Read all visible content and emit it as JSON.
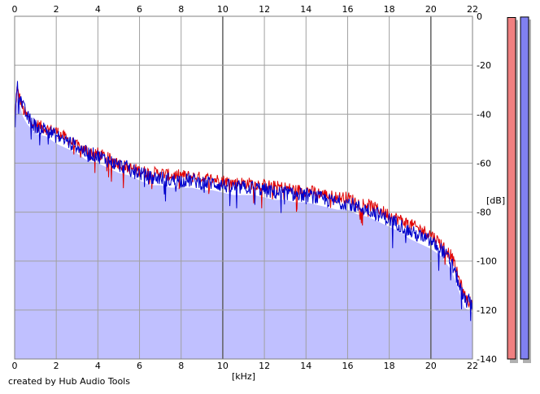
{
  "chart_data": {
    "type": "area",
    "title": "",
    "xlabel": "[kHz]",
    "ylabel": "[dB]",
    "xlim": [
      0,
      22
    ],
    "ylim": [
      -140,
      0
    ],
    "x_ticks": [
      0,
      2,
      4,
      6,
      8,
      10,
      12,
      14,
      16,
      18,
      20,
      22
    ],
    "y_ticks": [
      0,
      -20,
      -40,
      -60,
      -80,
      -100,
      -120,
      -140
    ],
    "grid": true,
    "colors": {
      "red": "#e00000",
      "blue": "#0000cc",
      "fill": "#c0c0ff"
    },
    "series": [
      {
        "color": "#e00000",
        "x": [
          0,
          0.1,
          0.2,
          0.4,
          0.6,
          0.8,
          1,
          1.5,
          2,
          2.5,
          3,
          3.5,
          4,
          4.5,
          5,
          5.5,
          6,
          6.5,
          7,
          7.5,
          8,
          8.5,
          9,
          9.5,
          10,
          10.5,
          11,
          11.5,
          12,
          12.5,
          13,
          13.5,
          14,
          14.5,
          15,
          15.5,
          16,
          16.5,
          17,
          17.5,
          18,
          18.5,
          19,
          19.5,
          20,
          20.5,
          21,
          21.3,
          21.6,
          22
        ],
        "values": [
          -45,
          -30,
          -32,
          -38,
          -41,
          -43,
          -44,
          -46,
          -47,
          -50,
          -53,
          -55,
          -56,
          -58,
          -60,
          -62,
          -63,
          -64,
          -64,
          -65,
          -65,
          -65.5,
          -66,
          -66.5,
          -67,
          -68,
          -68,
          -68.5,
          -69,
          -69.5,
          -70,
          -71,
          -71,
          -72,
          -73,
          -74,
          -74,
          -76,
          -77,
          -79,
          -81,
          -83,
          -85,
          -87,
          -89,
          -93,
          -98,
          -106,
          -114,
          -118
        ]
      },
      {
        "color": "#0000cc",
        "x": [
          0,
          0.1,
          0.2,
          0.4,
          0.6,
          0.8,
          1,
          1.5,
          2,
          2.5,
          3,
          3.5,
          4,
          4.5,
          5,
          5.5,
          6,
          6.5,
          7,
          7.5,
          8,
          8.5,
          9,
          9.5,
          10,
          10.5,
          11,
          11.5,
          12,
          12.5,
          13,
          13.5,
          14,
          14.5,
          15,
          15.5,
          16,
          16.5,
          17,
          17.5,
          18,
          18.5,
          19,
          19.5,
          20,
          20.5,
          21,
          21.3,
          21.6,
          22
        ],
        "values": [
          -48,
          -27,
          -31,
          -37,
          -41,
          -43,
          -45,
          -46,
          -49,
          -51,
          -53,
          -56,
          -57,
          -59,
          -61,
          -62,
          -64,
          -66,
          -66,
          -67,
          -67,
          -67,
          -68,
          -68,
          -69,
          -70,
          -70,
          -70,
          -71,
          -72,
          -72,
          -73,
          -73,
          -74,
          -75,
          -76,
          -76,
          -78,
          -79,
          -81,
          -83,
          -85,
          -88,
          -90,
          -92,
          -95,
          -101,
          -108,
          -116,
          -117
        ]
      }
    ],
    "level_meters": [
      {
        "color": "#f08080",
        "level_db": -0.5
      },
      {
        "color": "#8080f0",
        "level_db": -0.3
      }
    ]
  },
  "footer": {
    "credit": "created by Hub Audio Tools"
  }
}
